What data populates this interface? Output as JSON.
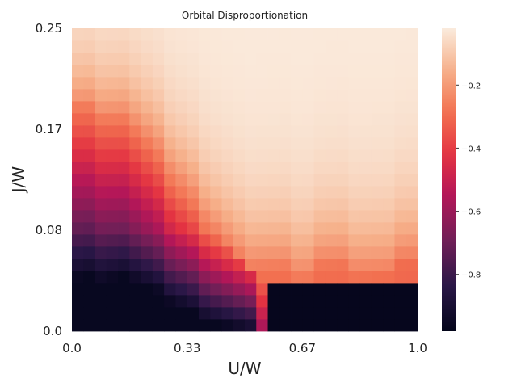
{
  "chart_data": {
    "type": "heatmap",
    "title": "Orbital Disproportionation",
    "xlabel": "U/W",
    "ylabel": "J/W",
    "x_ticks": [
      "0.0",
      "0.33",
      "0.67",
      "1.0"
    ],
    "y_ticks": [
      "0.0",
      "0.08",
      "0.17",
      "0.25"
    ],
    "xlim": [
      0,
      1
    ],
    "ylim": [
      0,
      0.25
    ],
    "grid_cols": 30,
    "grid_rows": 25,
    "colormap": "rocket",
    "colorbar": {
      "range": [
        -0.98,
        -0.02
      ],
      "ticks": [
        -0.2,
        -0.4,
        -0.6,
        -0.8
      ],
      "tick_labels": [
        "−0.2",
        "−0.4",
        "−0.6",
        "−0.8"
      ]
    },
    "boundary_heights": [
      19,
      19,
      18,
      18,
      18,
      17,
      16,
      15,
      13,
      12,
      11,
      9,
      8,
      7,
      6,
      5,
      5,
      5,
      5,
      4,
      4,
      5,
      5,
      5,
      4,
      4,
      4,
      4,
      5,
      5
    ],
    "value_min": -0.98,
    "value_max": -0.02
  }
}
